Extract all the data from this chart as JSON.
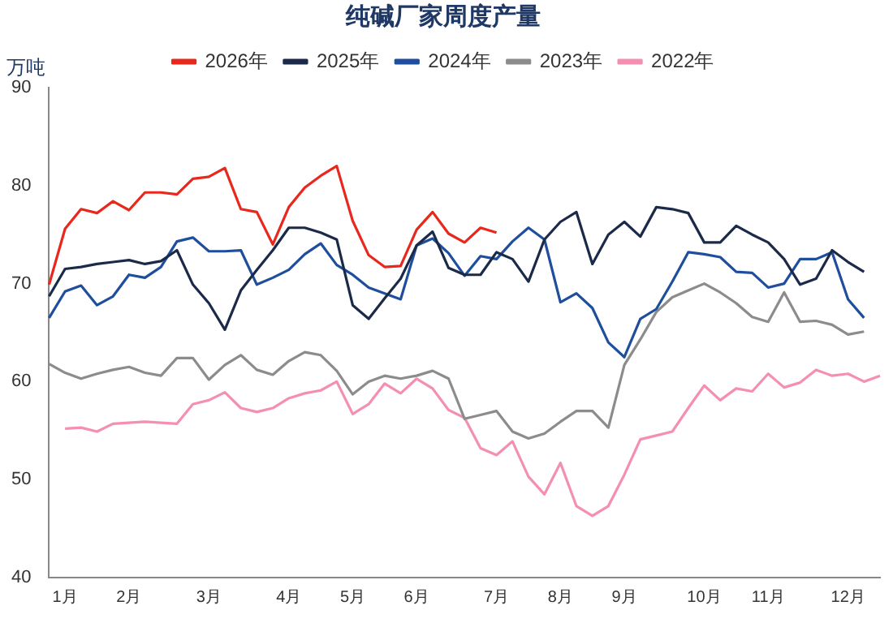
{
  "chart_data": {
    "type": "line",
    "title": "纯碱厂家周度产量",
    "ylabel": "万吨",
    "categories": [
      null,
      "1月",
      null,
      null,
      null,
      "2月",
      null,
      null,
      null,
      null,
      "3月",
      null,
      null,
      null,
      null,
      "4月",
      null,
      null,
      null,
      "5月",
      null,
      null,
      null,
      "6月",
      null,
      null,
      null,
      null,
      "7月",
      null,
      null,
      null,
      "8月",
      null,
      null,
      null,
      "9月",
      null,
      null,
      null,
      null,
      "10月",
      null,
      null,
      null,
      "11月",
      null,
      null,
      null,
      null,
      "12月",
      null,
      null
    ],
    "series": [
      {
        "name": "2026年",
        "color": "#e8281c",
        "values": [
          69.9,
          75.6,
          77.6,
          77.2,
          78.4,
          77.5,
          79.3,
          79.3,
          79.1,
          80.7,
          80.9,
          81.8,
          77.6,
          77.3,
          74.0,
          77.8,
          79.8,
          81.0,
          82.0,
          76.4,
          72.9,
          71.7,
          71.8,
          75.5,
          77.3,
          75.1,
          74.2,
          75.7,
          75.2,
          null,
          null,
          null,
          null,
          null,
          null,
          null,
          null,
          null,
          null,
          null,
          null,
          null,
          null,
          null,
          null,
          null,
          null,
          null,
          null,
          null,
          null,
          null,
          null
        ]
      },
      {
        "name": "2025年",
        "color": "#1c2a4a",
        "values": [
          68.7,
          71.5,
          71.7,
          72.0,
          72.2,
          72.4,
          72.0,
          72.3,
          73.4,
          69.9,
          68.0,
          65.3,
          69.3,
          71.4,
          73.4,
          75.7,
          75.7,
          75.2,
          74.5,
          67.8,
          66.4,
          68.5,
          70.5,
          73.9,
          75.3,
          71.6,
          70.9,
          70.9,
          73.2,
          72.5,
          70.2,
          74.5,
          76.3,
          77.3,
          72.0,
          75.0,
          76.3,
          74.8,
          77.8,
          77.6,
          77.2,
          74.2,
          74.2,
          75.9,
          75.0,
          74.2,
          72.5,
          69.9,
          70.5,
          73.4,
          72.2,
          71.2,
          null
        ]
      },
      {
        "name": "2024年",
        "color": "#1f4e9c",
        "values": [
          66.5,
          69.2,
          69.8,
          67.8,
          68.7,
          70.9,
          70.6,
          71.7,
          74.3,
          74.7,
          73.3,
          73.3,
          73.4,
          69.9,
          70.6,
          71.4,
          73.0,
          74.1,
          71.9,
          70.9,
          69.6,
          69.0,
          68.4,
          73.9,
          74.6,
          73.1,
          70.8,
          72.8,
          72.5,
          74.3,
          75.7,
          74.5,
          68.1,
          69.0,
          67.5,
          64.0,
          62.5,
          66.4,
          67.4,
          70.2,
          73.2,
          73.0,
          72.7,
          71.2,
          71.1,
          69.6,
          70.0,
          72.5,
          72.5,
          73.2,
          68.4,
          66.5,
          null
        ]
      },
      {
        "name": "2023年",
        "color": "#8c8c8c",
        "values": [
          61.8,
          60.9,
          60.3,
          60.8,
          61.2,
          61.5,
          60.9,
          60.6,
          62.4,
          62.4,
          60.2,
          61.7,
          62.7,
          61.2,
          60.7,
          62.1,
          63.0,
          62.7,
          61.1,
          58.7,
          60.0,
          60.6,
          60.3,
          60.6,
          61.1,
          60.3,
          56.2,
          56.6,
          57.0,
          54.9,
          54.2,
          54.7,
          55.9,
          57.0,
          57.0,
          55.3,
          61.7,
          64.3,
          67.1,
          68.6,
          69.3,
          70.0,
          69.1,
          68.0,
          66.6,
          66.1,
          69.1,
          66.1,
          66.2,
          65.8,
          64.8,
          65.1,
          null
        ]
      },
      {
        "name": "2022年",
        "color": "#f48fb1",
        "values": [
          null,
          55.2,
          55.3,
          54.9,
          55.7,
          55.8,
          55.9,
          55.8,
          55.7,
          57.7,
          58.1,
          58.9,
          57.3,
          56.9,
          57.3,
          58.3,
          58.8,
          59.1,
          60.0,
          56.7,
          57.7,
          59.8,
          58.8,
          60.3,
          59.3,
          57.1,
          56.3,
          53.2,
          52.5,
          53.9,
          50.3,
          48.5,
          51.7,
          47.3,
          46.3,
          47.3,
          50.5,
          54.1,
          54.5,
          54.9,
          57.3,
          59.6,
          58.1,
          59.3,
          59.0,
          60.8,
          59.4,
          59.9,
          61.2,
          60.6,
          60.8,
          60.0,
          60.6
        ]
      }
    ],
    "ylim": [
      40,
      90
    ],
    "yticks": [
      40,
      50,
      60,
      70,
      80,
      90
    ],
    "grid": false,
    "legend": "top"
  }
}
